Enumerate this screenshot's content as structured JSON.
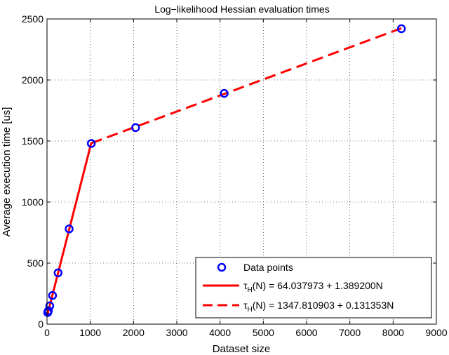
{
  "chart_data": {
    "type": "line",
    "title": "Log−likelihood Hessian evaluation times",
    "xlabel": "Dataset size",
    "ylabel": "Average execution time [us]",
    "xlim": [
      0,
      9000
    ],
    "ylim": [
      0,
      2500
    ],
    "xticks": [
      0,
      1000,
      2000,
      3000,
      4000,
      5000,
      6000,
      7000,
      8000,
      9000
    ],
    "yticks": [
      0,
      500,
      1000,
      1500,
      2000,
      2500
    ],
    "grid": "dotted",
    "legend_position": "bottom-right",
    "series": [
      {
        "name": "Data points",
        "style": "markers",
        "color": "#0000ff",
        "x": [
          16,
          32,
          64,
          128,
          256,
          512,
          1024,
          2048,
          4096,
          8192
        ],
        "y": [
          95,
          110,
          150,
          235,
          420,
          780,
          1480,
          1610,
          1890,
          2420
        ]
      },
      {
        "name_prefix": "τ",
        "name_sub": "H",
        "name_suffix": "(N) = 64.037973 + 1.389200N",
        "style": "solid",
        "color": "#ff0000",
        "x": [
          16,
          1024
        ],
        "y": [
          86,
          1486
        ]
      },
      {
        "name_prefix": "τ",
        "name_sub": "H",
        "name_suffix": "(N) = 1347.810903 + 0.131353N",
        "style": "dashed",
        "color": "#ff0000",
        "x": [
          1024,
          8192
        ],
        "y": [
          1482,
          2424
        ]
      }
    ]
  }
}
